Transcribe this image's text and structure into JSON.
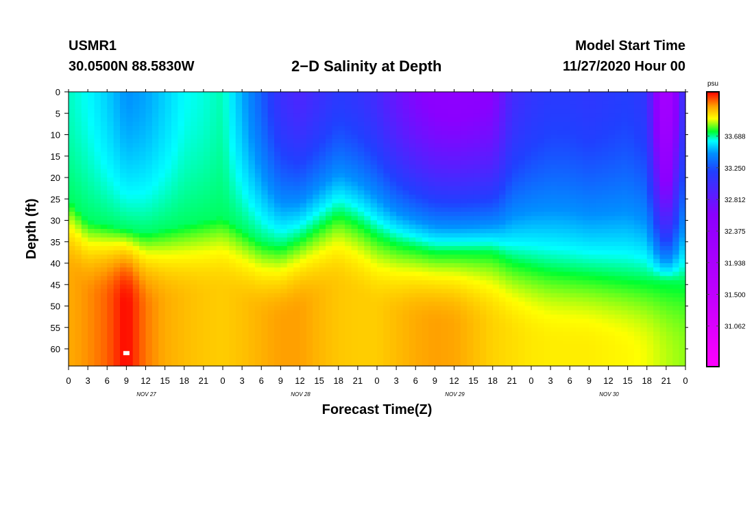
{
  "header": {
    "station": "USMR1",
    "coords": "30.0500N 88.5830W",
    "title": "2−D Salinity at Depth",
    "model_start_label": "Model Start Time",
    "model_start_value": "11/27/2020 Hour 00"
  },
  "chart_data": {
    "type": "heatmap",
    "title": "2−D Salinity at Depth",
    "xlabel": "Forecast Time(Z)",
    "ylabel": "Depth (ft)",
    "x_range_hours": [
      0,
      96
    ],
    "y_range_ft": [
      0,
      64
    ],
    "x_ticks": [
      {
        "h": 0,
        "label": "0"
      },
      {
        "h": 3,
        "label": "3"
      },
      {
        "h": 6,
        "label": "6"
      },
      {
        "h": 9,
        "label": "9"
      },
      {
        "h": 12,
        "label": "12"
      },
      {
        "h": 15,
        "label": "15"
      },
      {
        "h": 18,
        "label": "18"
      },
      {
        "h": 21,
        "label": "21"
      },
      {
        "h": 24,
        "label": "0"
      },
      {
        "h": 27,
        "label": "3"
      },
      {
        "h": 30,
        "label": "6"
      },
      {
        "h": 33,
        "label": "9"
      },
      {
        "h": 36,
        "label": "12"
      },
      {
        "h": 39,
        "label": "15"
      },
      {
        "h": 42,
        "label": "18"
      },
      {
        "h": 45,
        "label": "21"
      },
      {
        "h": 48,
        "label": "0"
      },
      {
        "h": 51,
        "label": "3"
      },
      {
        "h": 54,
        "label": "6"
      },
      {
        "h": 57,
        "label": "9"
      },
      {
        "h": 60,
        "label": "12"
      },
      {
        "h": 63,
        "label": "15"
      },
      {
        "h": 66,
        "label": "18"
      },
      {
        "h": 69,
        "label": "21"
      },
      {
        "h": 72,
        "label": "0"
      },
      {
        "h": 75,
        "label": "3"
      },
      {
        "h": 78,
        "label": "6"
      },
      {
        "h": 81,
        "label": "9"
      },
      {
        "h": 84,
        "label": "12"
      },
      {
        "h": 87,
        "label": "15"
      },
      {
        "h": 90,
        "label": "18"
      },
      {
        "h": 93,
        "label": "21"
      },
      {
        "h": 96,
        "label": "0"
      }
    ],
    "date_labels": [
      {
        "h": 12,
        "label": "NOV 27"
      },
      {
        "h": 36,
        "label": "NOV 28"
      },
      {
        "h": 60,
        "label": "NOV 29"
      },
      {
        "h": 84,
        "label": "NOV 30"
      }
    ],
    "y_ticks": [
      0,
      5,
      10,
      15,
      20,
      25,
      30,
      35,
      40,
      45,
      50,
      55,
      60
    ],
    "colorbar": {
      "unit": "psu",
      "range": [
        30.5,
        34.3
      ],
      "ticks": [
        33.688,
        33.25,
        32.812,
        32.375,
        31.938,
        31.5,
        31.062
      ],
      "tick_labels": [
        "33.688",
        "33.250",
        "32.812",
        "32.375",
        "31.938",
        "31.500",
        "31.062"
      ],
      "stops": [
        {
          "v": 30.5,
          "color": "#ff00ff"
        },
        {
          "v": 31.5,
          "color": "#c000ff"
        },
        {
          "v": 32.6,
          "color": "#8a00ff"
        },
        {
          "v": 33.2,
          "color": "#2040ff"
        },
        {
          "v": 33.45,
          "color": "#0090ff"
        },
        {
          "v": 33.62,
          "color": "#00ffff"
        },
        {
          "v": 33.75,
          "color": "#00ff30"
        },
        {
          "v": 33.93,
          "color": "#ffff00"
        },
        {
          "v": 34.1,
          "color": "#ffa000"
        },
        {
          "v": 34.3,
          "color": "#ff0000"
        }
      ]
    },
    "surface_salinity": [
      {
        "h": 0,
        "v": 33.66
      },
      {
        "h": 3,
        "v": 33.62
      },
      {
        "h": 6,
        "v": 33.55
      },
      {
        "h": 9,
        "v": 33.45
      },
      {
        "h": 12,
        "v": 33.48
      },
      {
        "h": 15,
        "v": 33.55
      },
      {
        "h": 18,
        "v": 33.62
      },
      {
        "h": 21,
        "v": 33.64
      },
      {
        "h": 24,
        "v": 33.67
      },
      {
        "h": 27,
        "v": 33.5
      },
      {
        "h": 30,
        "v": 33.3
      },
      {
        "h": 33,
        "v": 33.05
      },
      {
        "h": 36,
        "v": 32.95
      },
      {
        "h": 39,
        "v": 33.05
      },
      {
        "h": 42,
        "v": 33.15
      },
      {
        "h": 45,
        "v": 33.1
      },
      {
        "h": 48,
        "v": 33.0
      },
      {
        "h": 51,
        "v": 32.8
      },
      {
        "h": 54,
        "v": 32.65
      },
      {
        "h": 57,
        "v": 32.55
      },
      {
        "h": 60,
        "v": 32.52
      },
      {
        "h": 63,
        "v": 32.55
      },
      {
        "h": 66,
        "v": 32.6
      },
      {
        "h": 69,
        "v": 33.0
      },
      {
        "h": 72,
        "v": 33.1
      },
      {
        "h": 75,
        "v": 33.15
      },
      {
        "h": 78,
        "v": 33.15
      },
      {
        "h": 81,
        "v": 33.12
      },
      {
        "h": 84,
        "v": 33.15
      },
      {
        "h": 87,
        "v": 33.18
      },
      {
        "h": 90,
        "v": 33.1
      },
      {
        "h": 93,
        "v": 31.9
      },
      {
        "h": 96,
        "v": 33.2
      }
    ],
    "halocline_depth_ft": [
      {
        "h": 0,
        "d": 25
      },
      {
        "h": 3,
        "d": 30
      },
      {
        "h": 6,
        "d": 31
      },
      {
        "h": 9,
        "d": 32
      },
      {
        "h": 12,
        "d": 33
      },
      {
        "h": 15,
        "d": 32
      },
      {
        "h": 18,
        "d": 31
      },
      {
        "h": 21,
        "d": 30
      },
      {
        "h": 24,
        "d": 29
      },
      {
        "h": 27,
        "d": 32
      },
      {
        "h": 30,
        "d": 35
      },
      {
        "h": 33,
        "d": 36
      },
      {
        "h": 36,
        "d": 34
      },
      {
        "h": 39,
        "d": 31
      },
      {
        "h": 42,
        "d": 28
      },
      {
        "h": 45,
        "d": 30
      },
      {
        "h": 48,
        "d": 33
      },
      {
        "h": 51,
        "d": 35
      },
      {
        "h": 54,
        "d": 36
      },
      {
        "h": 57,
        "d": 37
      },
      {
        "h": 60,
        "d": 37
      },
      {
        "h": 63,
        "d": 37
      },
      {
        "h": 66,
        "d": 37
      },
      {
        "h": 69,
        "d": 39
      },
      {
        "h": 72,
        "d": 40
      },
      {
        "h": 75,
        "d": 41
      },
      {
        "h": 78,
        "d": 41.5
      },
      {
        "h": 81,
        "d": 42
      },
      {
        "h": 84,
        "d": 42.5
      },
      {
        "h": 87,
        "d": 43
      },
      {
        "h": 90,
        "d": 43.5
      },
      {
        "h": 93,
        "d": 44
      },
      {
        "h": 96,
        "d": 44
      }
    ],
    "bottom_salinity": [
      {
        "h": 0,
        "v": 34.08
      },
      {
        "h": 3,
        "v": 34.12
      },
      {
        "h": 6,
        "v": 34.18
      },
      {
        "h": 9,
        "v": 34.3
      },
      {
        "h": 12,
        "v": 34.15
      },
      {
        "h": 15,
        "v": 34.08
      },
      {
        "h": 18,
        "v": 34.05
      },
      {
        "h": 21,
        "v": 34.03
      },
      {
        "h": 24,
        "v": 34.02
      },
      {
        "h": 27,
        "v": 34.04
      },
      {
        "h": 30,
        "v": 34.07
      },
      {
        "h": 33,
        "v": 34.1
      },
      {
        "h": 36,
        "v": 34.1
      },
      {
        "h": 39,
        "v": 34.06
      },
      {
        "h": 42,
        "v": 34.03
      },
      {
        "h": 45,
        "v": 34.02
      },
      {
        "h": 48,
        "v": 34.02
      },
      {
        "h": 51,
        "v": 34.05
      },
      {
        "h": 54,
        "v": 34.08
      },
      {
        "h": 57,
        "v": 34.1
      },
      {
        "h": 60,
        "v": 34.09
      },
      {
        "h": 63,
        "v": 34.05
      },
      {
        "h": 66,
        "v": 34.01
      },
      {
        "h": 69,
        "v": 33.99
      },
      {
        "h": 72,
        "v": 33.97
      },
      {
        "h": 75,
        "v": 33.96
      },
      {
        "h": 78,
        "v": 33.96
      },
      {
        "h": 81,
        "v": 33.96
      },
      {
        "h": 84,
        "v": 33.95
      },
      {
        "h": 87,
        "v": 33.94
      },
      {
        "h": 90,
        "v": 33.92
      },
      {
        "h": 93,
        "v": 33.88
      },
      {
        "h": 96,
        "v": 33.85
      }
    ],
    "max_marker": {
      "h": 9,
      "d": 61
    }
  }
}
